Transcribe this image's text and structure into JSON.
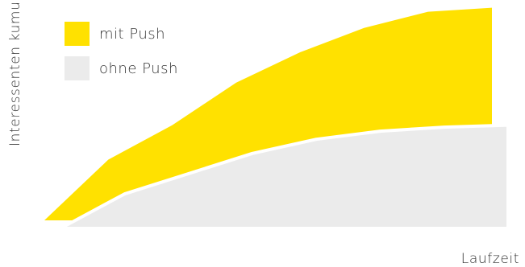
{
  "chart_data": {
    "type": "area",
    "xlabel": "Laufzeit",
    "ylabel": "Interessenten kumuliert",
    "x": [
      0,
      1,
      2,
      3,
      4,
      5,
      6,
      7
    ],
    "series": [
      {
        "name": "mit Push",
        "color": "#FFE100",
        "values": [
          0,
          30,
          47,
          68,
          83,
          95,
          103,
          105
        ]
      },
      {
        "name": "ohne Push",
        "color": "#EBEBEB",
        "values": [
          0,
          17,
          27,
          37,
          44,
          48,
          50,
          51
        ]
      }
    ],
    "xlim": [
      0,
      7
    ],
    "ylim": [
      0,
      110
    ],
    "grid": false,
    "legend": "top-left"
  }
}
